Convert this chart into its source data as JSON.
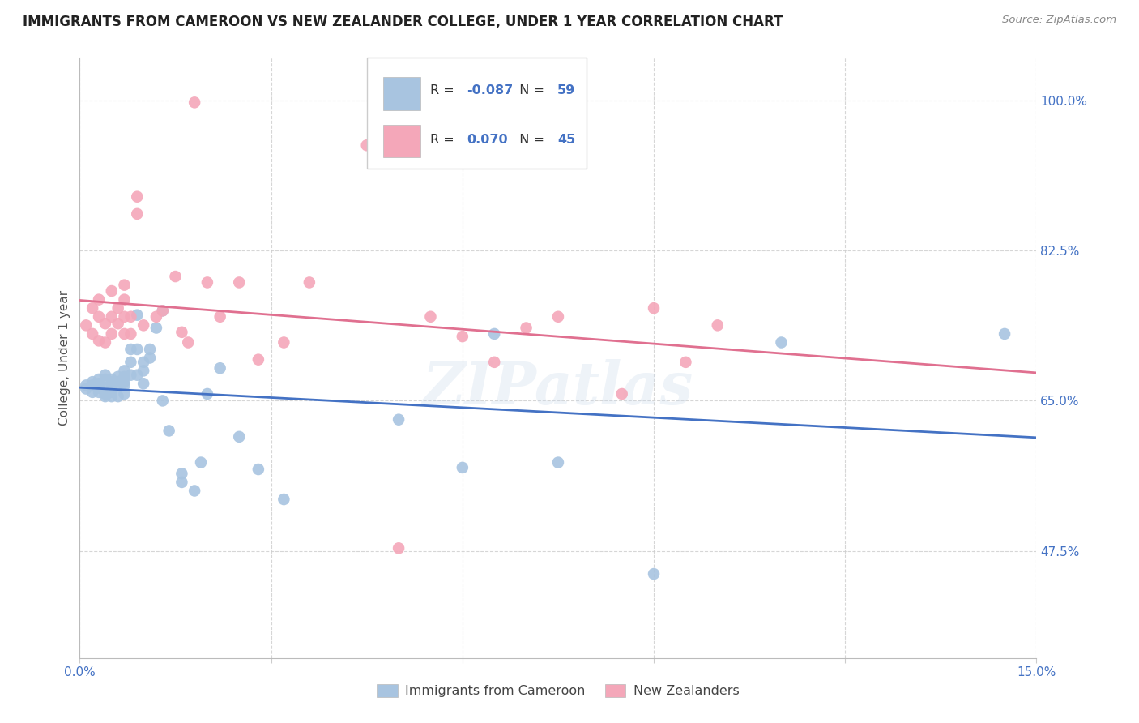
{
  "title": "IMMIGRANTS FROM CAMEROON VS NEW ZEALANDER COLLEGE, UNDER 1 YEAR CORRELATION CHART",
  "source": "Source: ZipAtlas.com",
  "ylabel": "College, Under 1 year",
  "xlim": [
    0.0,
    0.15
  ],
  "ylim": [
    0.35,
    1.05
  ],
  "yticks": [
    0.475,
    0.65,
    0.825,
    1.0
  ],
  "ytick_labels": [
    "47.5%",
    "65.0%",
    "82.5%",
    "100.0%"
  ],
  "xticks": [
    0.0,
    0.03,
    0.06,
    0.09,
    0.12,
    0.15
  ],
  "xtick_labels": [
    "0.0%",
    "",
    "",
    "",
    "",
    "15.0%"
  ],
  "blue_r": "-0.087",
  "blue_n": "59",
  "pink_r": "0.070",
  "pink_n": "45",
  "blue_color": "#a8c4e0",
  "pink_color": "#f4a7b9",
  "blue_line_color": "#4472c4",
  "pink_line_color": "#e07090",
  "axis_color": "#4472c4",
  "watermark": "ZIPatlas",
  "blue_scatter_x": [
    0.001,
    0.001,
    0.002,
    0.002,
    0.002,
    0.003,
    0.003,
    0.003,
    0.003,
    0.004,
    0.004,
    0.004,
    0.004,
    0.004,
    0.005,
    0.005,
    0.005,
    0.005,
    0.005,
    0.006,
    0.006,
    0.006,
    0.006,
    0.007,
    0.007,
    0.007,
    0.007,
    0.007,
    0.008,
    0.008,
    0.008,
    0.009,
    0.009,
    0.009,
    0.01,
    0.01,
    0.01,
    0.011,
    0.011,
    0.012,
    0.013,
    0.013,
    0.014,
    0.016,
    0.016,
    0.018,
    0.019,
    0.02,
    0.022,
    0.025,
    0.028,
    0.032,
    0.05,
    0.06,
    0.065,
    0.075,
    0.09,
    0.11,
    0.145
  ],
  "blue_scatter_y": [
    0.668,
    0.664,
    0.672,
    0.668,
    0.66,
    0.675,
    0.67,
    0.665,
    0.66,
    0.68,
    0.675,
    0.665,
    0.658,
    0.655,
    0.675,
    0.672,
    0.668,
    0.66,
    0.655,
    0.678,
    0.672,
    0.668,
    0.655,
    0.685,
    0.678,
    0.672,
    0.668,
    0.658,
    0.71,
    0.695,
    0.68,
    0.75,
    0.71,
    0.68,
    0.695,
    0.685,
    0.67,
    0.71,
    0.7,
    0.735,
    0.755,
    0.65,
    0.615,
    0.565,
    0.555,
    0.545,
    0.578,
    0.658,
    0.688,
    0.608,
    0.57,
    0.535,
    0.628,
    0.572,
    0.728,
    0.578,
    0.448,
    0.718,
    0.728
  ],
  "pink_scatter_x": [
    0.001,
    0.002,
    0.002,
    0.003,
    0.003,
    0.003,
    0.004,
    0.004,
    0.005,
    0.005,
    0.005,
    0.006,
    0.006,
    0.007,
    0.007,
    0.007,
    0.007,
    0.008,
    0.008,
    0.009,
    0.009,
    0.01,
    0.012,
    0.013,
    0.015,
    0.016,
    0.017,
    0.018,
    0.02,
    0.022,
    0.025,
    0.028,
    0.032,
    0.036,
    0.045,
    0.05,
    0.055,
    0.06,
    0.065,
    0.07,
    0.075,
    0.085,
    0.09,
    0.095,
    0.1
  ],
  "pink_scatter_y": [
    0.738,
    0.728,
    0.758,
    0.748,
    0.72,
    0.768,
    0.74,
    0.718,
    0.778,
    0.748,
    0.728,
    0.74,
    0.758,
    0.785,
    0.768,
    0.748,
    0.728,
    0.748,
    0.728,
    0.868,
    0.888,
    0.738,
    0.748,
    0.755,
    0.795,
    0.73,
    0.718,
    0.998,
    0.788,
    0.748,
    0.788,
    0.698,
    0.718,
    0.788,
    0.948,
    0.478,
    0.748,
    0.725,
    0.695,
    0.735,
    0.748,
    0.658,
    0.758,
    0.695,
    0.738
  ]
}
